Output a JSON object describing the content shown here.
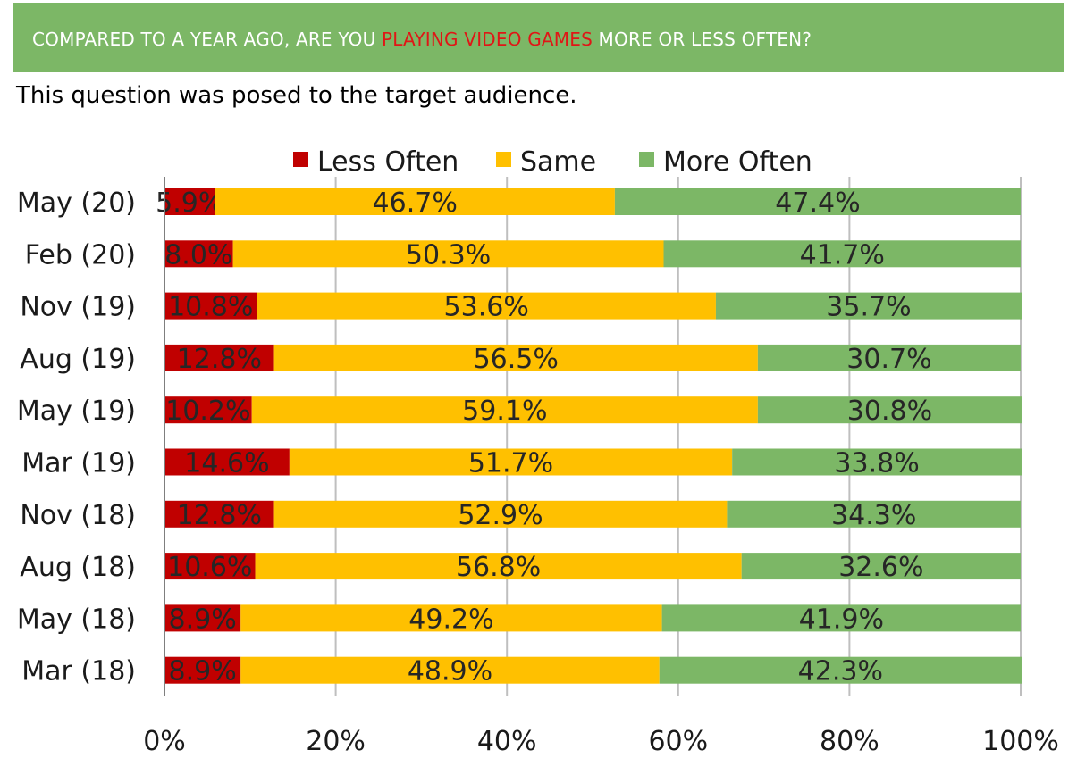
{
  "header": {
    "question_pre": "COMPARED TO A YEAR AGO, ARE YOU ",
    "question_highlight": "PLAYING VIDEO GAMES",
    "question_post": " MORE OR LESS OFTEN?",
    "banner_color": "#7cb766",
    "highlight_color": "#e01616"
  },
  "subtitle": "This question was posed to the target audience.",
  "chart_data": {
    "type": "bar",
    "orientation": "horizontal",
    "stacked": true,
    "categories": [
      "May (20)",
      "Feb (20)",
      "Nov (19)",
      "Aug (19)",
      "May (19)",
      "Mar (19)",
      "Nov (18)",
      "Aug (18)",
      "May (18)",
      "Mar (18)"
    ],
    "series": [
      {
        "name": "Less Often",
        "color": "#c00000",
        "values": [
          5.9,
          8.0,
          10.8,
          12.8,
          10.2,
          14.6,
          12.8,
          10.6,
          8.9,
          8.9
        ],
        "labels": [
          "5.9%",
          "8.0%",
          "10.8%",
          "12.8%",
          "10.2%",
          "14.6%",
          "12.8%",
          "10.6%",
          "8.9%",
          "8.9%"
        ]
      },
      {
        "name": "Same",
        "color": "#ffc000",
        "values": [
          46.7,
          50.3,
          53.6,
          56.5,
          59.1,
          51.7,
          52.9,
          56.8,
          49.2,
          48.9
        ],
        "labels": [
          "46.7%",
          "50.3%",
          "53.6%",
          "56.5%",
          "59.1%",
          "51.7%",
          "52.9%",
          "56.8%",
          "49.2%",
          "48.9%"
        ]
      },
      {
        "name": "More Often",
        "color": "#7cb766",
        "values": [
          47.4,
          41.7,
          35.7,
          30.7,
          30.8,
          33.8,
          34.3,
          32.6,
          41.9,
          42.3
        ],
        "labels": [
          "47.4%",
          "41.7%",
          "35.7%",
          "30.7%",
          "30.8%",
          "33.8%",
          "34.3%",
          "32.6%",
          "41.9%",
          "42.3%"
        ]
      }
    ],
    "xlim": [
      0,
      100
    ],
    "xticks": [
      "0%",
      "20%",
      "40%",
      "60%",
      "80%",
      "100%"
    ],
    "grid": true,
    "legend": "top"
  }
}
